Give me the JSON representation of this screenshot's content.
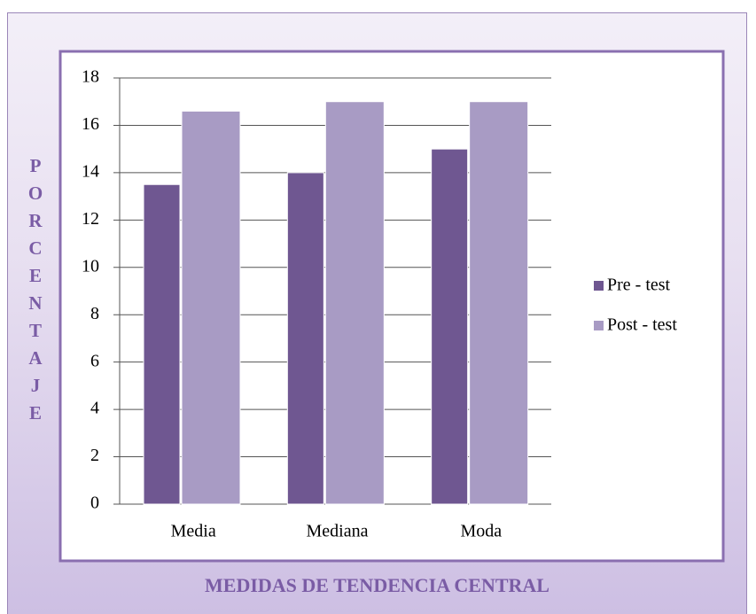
{
  "chart_data": {
    "type": "bar",
    "categories": [
      "Media",
      "Mediana",
      "Moda"
    ],
    "series": [
      {
        "name": "Pre - test",
        "color": "#6f5791",
        "values": [
          13.5,
          14,
          15
        ]
      },
      {
        "name": "Post - test",
        "color": "#a89bc4",
        "values": [
          16.6,
          17,
          17
        ]
      }
    ],
    "ylim": [
      0,
      18
    ],
    "yticks": [
      0,
      2,
      4,
      6,
      8,
      10,
      12,
      14,
      16,
      18
    ],
    "grid": true,
    "legend": "right",
    "ylabel": "PORCENTAJE",
    "xlabel": "MEDIDAS DE TENDENCIA CENTRAL"
  }
}
